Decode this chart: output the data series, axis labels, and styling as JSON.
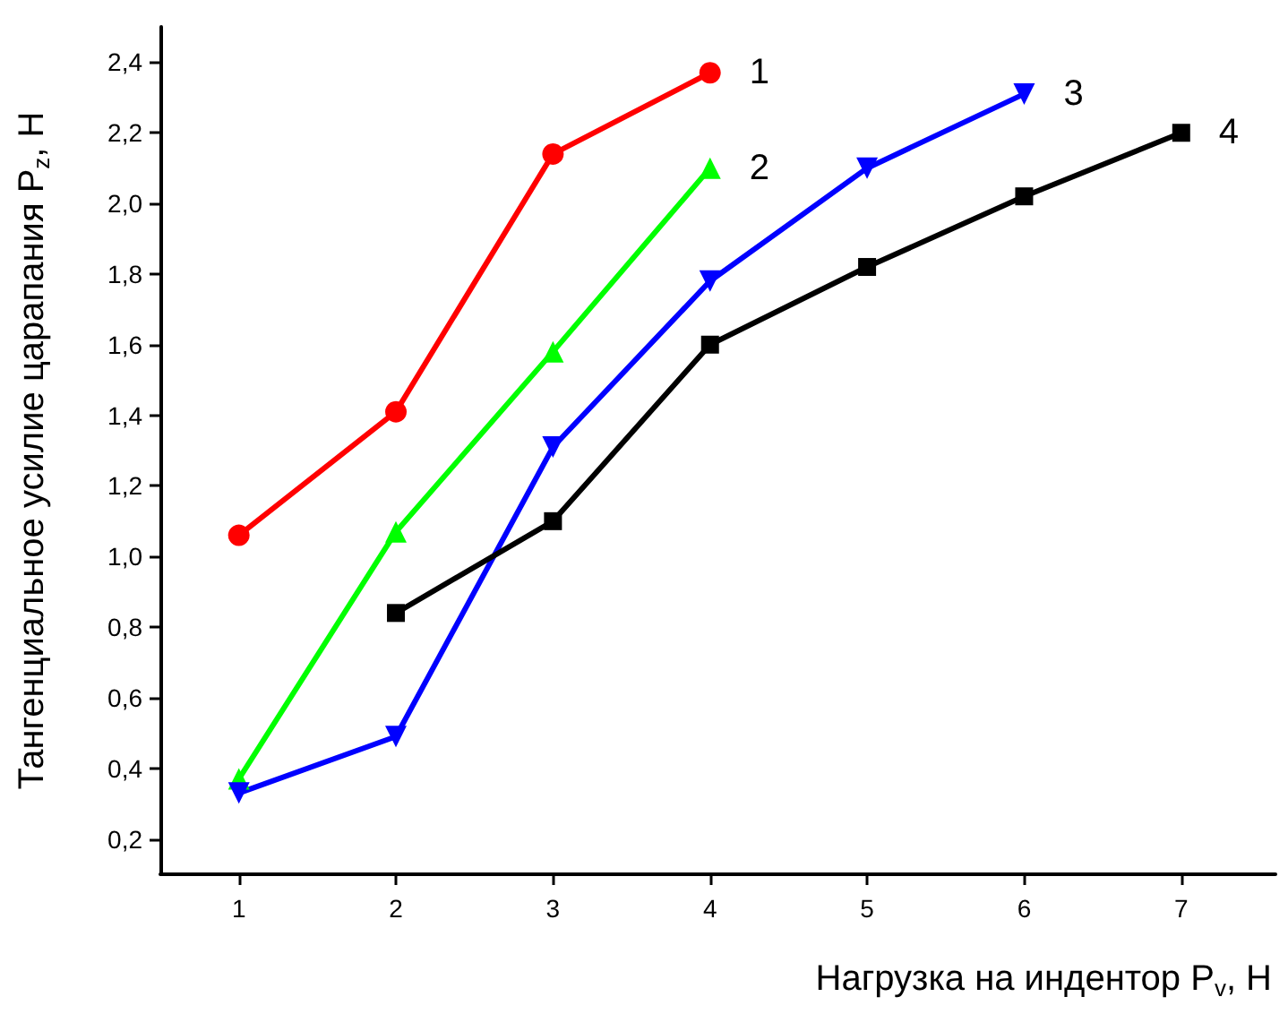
{
  "chart_data": {
    "type": "line",
    "xlabel": "Нагрузка на индентор P$_{v}$, Н",
    "ylabel": "Тангенциальное усилие царапания P$_{z}$, Н",
    "x": [
      1,
      2,
      3,
      4,
      5,
      6,
      7
    ],
    "series": [
      {
        "name": "1",
        "color": "#ff0000",
        "marker": "circle",
        "values": [
          1.06,
          1.41,
          2.14,
          2.37,
          null,
          null,
          null
        ]
      },
      {
        "name": "2",
        "color": "#00ff00",
        "marker": "triangle",
        "values": [
          0.37,
          1.07,
          1.58,
          2.1,
          null,
          null,
          null
        ]
      },
      {
        "name": "3",
        "color": "#0000ff",
        "marker": "triangle-down",
        "values": [
          0.33,
          0.49,
          1.31,
          1.78,
          2.1,
          2.31,
          null
        ]
      },
      {
        "name": "4",
        "color": "#000000",
        "marker": "square",
        "values": [
          null,
          0.84,
          1.1,
          1.6,
          1.82,
          2.02,
          2.2
        ]
      }
    ],
    "xlim": [
      0.5,
      7.6
    ],
    "xticks": [
      1,
      2,
      3,
      4,
      5,
      6,
      7
    ],
    "ylim": [
      0.1,
      2.5
    ],
    "yticks": [
      {
        "value": 0.2,
        "label": "0,2"
      },
      {
        "value": 0.4,
        "label": "0,4"
      },
      {
        "value": 0.6,
        "label": "0,6"
      },
      {
        "value": 0.8,
        "label": "0,8"
      },
      {
        "value": 1.0,
        "label": "1,0"
      },
      {
        "value": 1.2,
        "label": "1,2"
      },
      {
        "value": 1.4,
        "label": "1,4"
      },
      {
        "value": 1.6,
        "label": "1,6"
      },
      {
        "value": 1.8,
        "label": "1,8"
      },
      {
        "value": 2.0,
        "label": "2,0"
      },
      {
        "value": 2.2,
        "label": "2,2"
      },
      {
        "value": 2.4,
        "label": "2,4"
      }
    ],
    "grid": false,
    "legend": false,
    "line_style": "solid"
  }
}
